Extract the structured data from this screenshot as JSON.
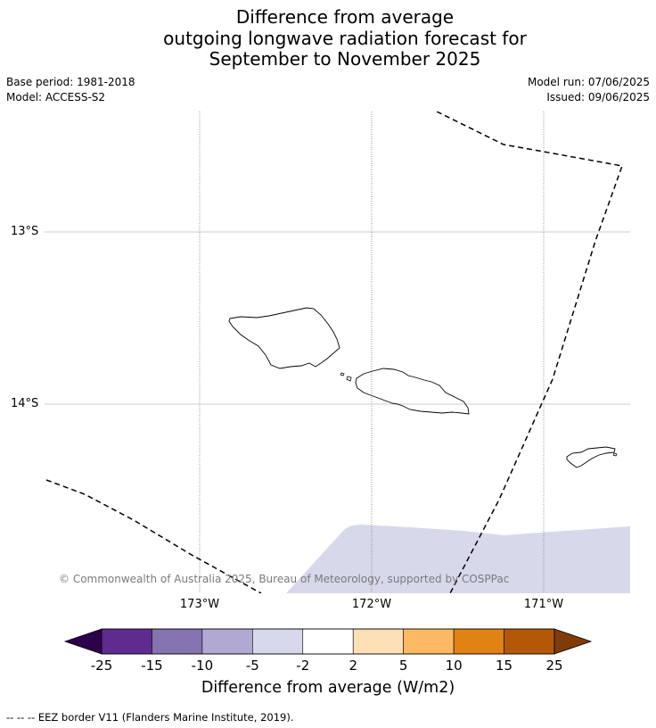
{
  "title": {
    "line1": "Difference from average",
    "line2": "outgoing longwave radiation forecast for",
    "line3": "September to November 2025"
  },
  "meta_left": {
    "base_period": "Base period: 1981-2018",
    "model": "Model: ACCESS-S2"
  },
  "meta_right": {
    "model_run": "Model run: 07/06/2025",
    "issued": "Issued: 09/06/2025"
  },
  "map": {
    "lat_labels": [
      "13°S",
      "14°S"
    ],
    "lon_labels": [
      "173°W",
      "172°W",
      "171°W"
    ],
    "anomaly_fill_color": "#d8d8eb",
    "copyright": "© Commonwealth of Australia 2025, Bureau of Meteorology, supported by COSPPac"
  },
  "colorbar": {
    "title": "Difference from average (W/m2)",
    "tick_labels": [
      "-25",
      "-15",
      "-10",
      "-5",
      "-2",
      "2",
      "5",
      "10",
      "15",
      "25"
    ],
    "colors": [
      "#5e2b8e",
      "#8574b0",
      "#b1a9d1",
      "#d8d8eb",
      "#ffffff",
      "#fde0b5",
      "#fdb863",
      "#e08214",
      "#b35806"
    ],
    "low_extend_color": "#2d004b",
    "high_extend_color": "#7f3b08"
  },
  "footer": {
    "legend": "--  --  -- EEZ border V11 (Flanders Marine Institute, 2019)."
  }
}
